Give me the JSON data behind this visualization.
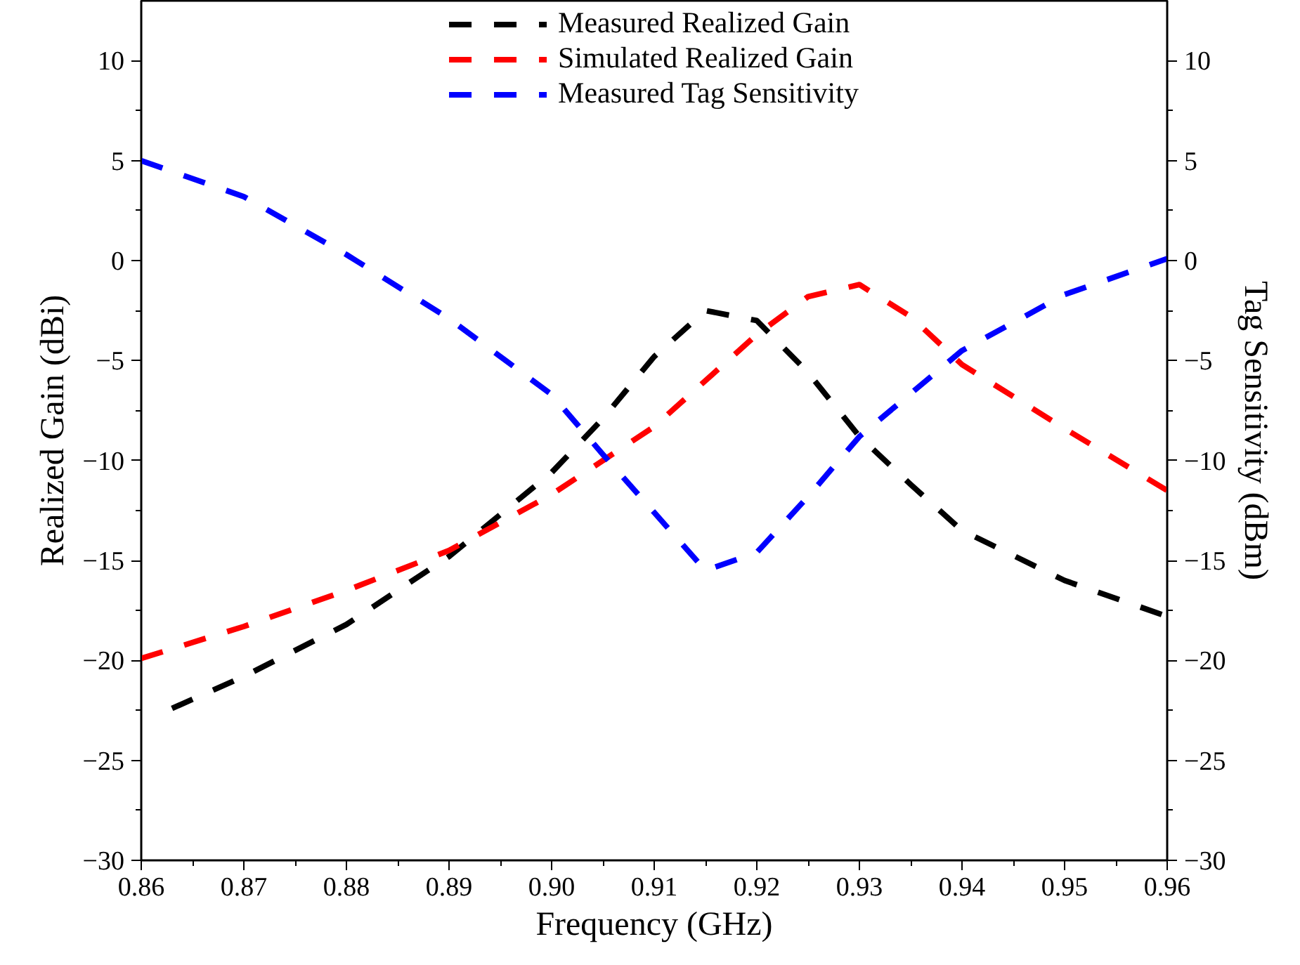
{
  "chart_data": {
    "type": "line",
    "xlabel": "Frequency (GHz)",
    "ylabel": "Realized Gain (dBi)",
    "y2label": "Tag Sensitivity (dBm)",
    "xlim": [
      0.86,
      0.96
    ],
    "ylim": [
      -30,
      13
    ],
    "y2lim": [
      -30,
      13
    ],
    "xticks": [
      0.86,
      0.87,
      0.88,
      0.89,
      {
        "value": 0.9,
        "label": "0.90"
      },
      0.91,
      0.92,
      0.93,
      0.94,
      0.95,
      0.96
    ],
    "yticks": [
      -30,
      -25,
      -20,
      -15,
      -10,
      -5,
      0,
      5,
      10
    ],
    "y2ticks": [
      -30,
      -25,
      -20,
      -15,
      -10,
      -5,
      0,
      5,
      10
    ],
    "grid": false,
    "legend": "top",
    "marker": "none",
    "line_style": "dashed",
    "series": [
      {
        "name": "Measured Realized Gain",
        "color": "#000000",
        "x": [
          0.863,
          0.87,
          0.88,
          0.89,
          0.9,
          0.905,
          0.91,
          0.915,
          0.92,
          0.925,
          0.93,
          0.935,
          0.94,
          0.95,
          0.96
        ],
        "values": [
          -22.4,
          -20.8,
          -18.2,
          -14.8,
          -10.6,
          -7.9,
          -4.8,
          -2.5,
          -3.0,
          -5.6,
          -8.8,
          -11.2,
          -13.5,
          -16.0,
          -17.8
        ]
      },
      {
        "name": "Simulated Realized Gain",
        "color": "#ff0000",
        "x": [
          0.86,
          0.87,
          0.88,
          0.89,
          0.9,
          0.91,
          0.92,
          0.925,
          0.93,
          0.935,
          0.94,
          0.95,
          0.96
        ],
        "values": [
          -19.9,
          -18.3,
          -16.5,
          -14.5,
          -11.7,
          -8.3,
          -3.7,
          -1.8,
          -1.2,
          -2.8,
          -5.2,
          -8.4,
          -11.5
        ]
      },
      {
        "name": "Measured Tag Sensitivity",
        "color": "#0000ff",
        "x": [
          0.86,
          0.87,
          0.88,
          0.89,
          0.9,
          0.905,
          0.91,
          0.915,
          0.92,
          0.925,
          0.93,
          0.94,
          0.95,
          0.96
        ],
        "values": [
          5.0,
          3.2,
          0.3,
          -2.9,
          -6.7,
          -9.7,
          -12.6,
          -15.5,
          -14.6,
          -11.8,
          -8.8,
          -4.5,
          -1.7,
          0.1
        ]
      }
    ]
  }
}
